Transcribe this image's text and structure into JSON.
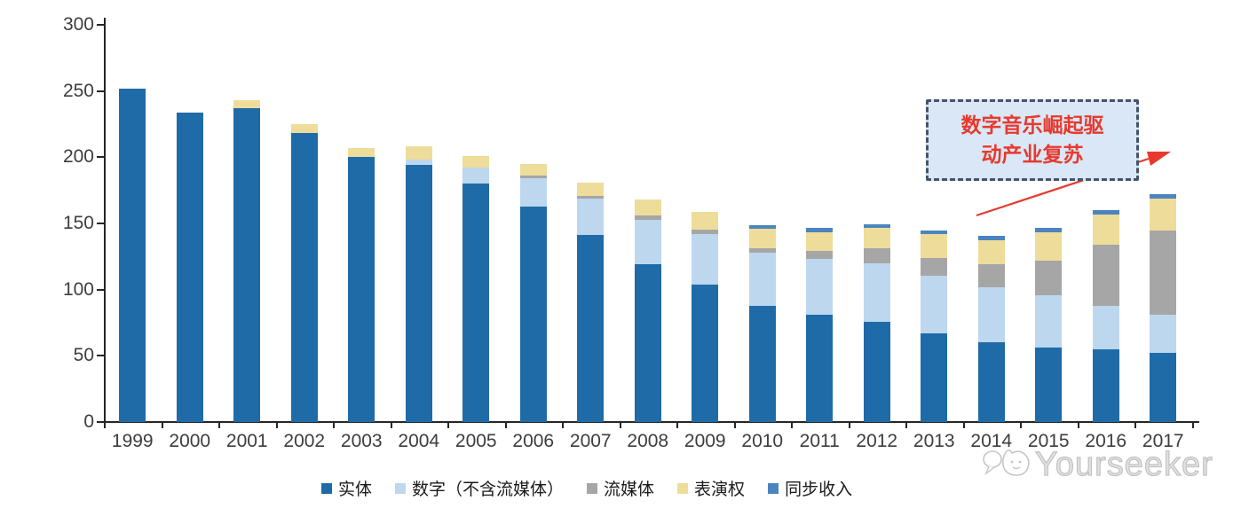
{
  "watermark": {
    "brand": "Yourseeker"
  },
  "annotation": {
    "lines": [
      "数字音乐崛起驱",
      "动产业复苏"
    ],
    "full_text": "数字音乐崛起驱动产业复苏",
    "box_fill": "#D9E7F6",
    "border_color": "#44546A",
    "text_color": "#E8392E",
    "arrow_color": "#E8392E"
  },
  "chart_data": {
    "type": "bar",
    "stacked": true,
    "title": "",
    "xlabel": "",
    "ylabel": "",
    "ylim": [
      0,
      300
    ],
    "yticks": [
      0,
      50,
      100,
      150,
      200,
      250,
      300
    ],
    "grid": false,
    "legend_position": "bottom",
    "axis_color": "#262626",
    "categories": [
      "1999",
      "2000",
      "2001",
      "2002",
      "2003",
      "2004",
      "2005",
      "2006",
      "2007",
      "2008",
      "2009",
      "2010",
      "2011",
      "2012",
      "2013",
      "2014",
      "2015",
      "2016",
      "2017"
    ],
    "series": [
      {
        "name": "实体",
        "color": "#1F6BA8",
        "values": [
          252,
          234,
          237,
          218,
          200,
          194,
          180,
          163,
          141,
          119,
          104,
          88,
          81,
          75.5,
          67,
          60,
          56,
          55,
          52
        ]
      },
      {
        "name": "数字（不含流媒体）",
        "color": "#BDD7EE",
        "values": [
          0,
          0,
          0,
          0,
          0,
          4,
          12,
          21,
          28,
          34,
          38,
          40,
          42,
          44.5,
          43.5,
          41.5,
          39.5,
          33,
          29
        ]
      },
      {
        "name": "流媒体",
        "color": "#A6A6A6",
        "values": [
          0,
          0,
          0,
          0,
          0,
          0,
          0,
          2,
          2,
          3,
          3,
          3,
          6,
          11,
          13.5,
          17.5,
          26.5,
          46,
          64
        ]
      },
      {
        "name": "表演权",
        "color": "#EEDC9B",
        "values": [
          0,
          0,
          6,
          7,
          7,
          10,
          9,
          9,
          10,
          12,
          13.5,
          15,
          14.5,
          15.5,
          18,
          18.5,
          21.5,
          23,
          23.5
        ]
      },
      {
        "name": "同步收入",
        "color": "#4C84BE",
        "values": [
          0,
          0,
          0,
          0,
          0,
          0,
          0,
          0,
          0,
          0,
          0,
          3,
          3,
          3,
          2.5,
          3,
          3.5,
          3,
          3.5
        ]
      }
    ]
  }
}
